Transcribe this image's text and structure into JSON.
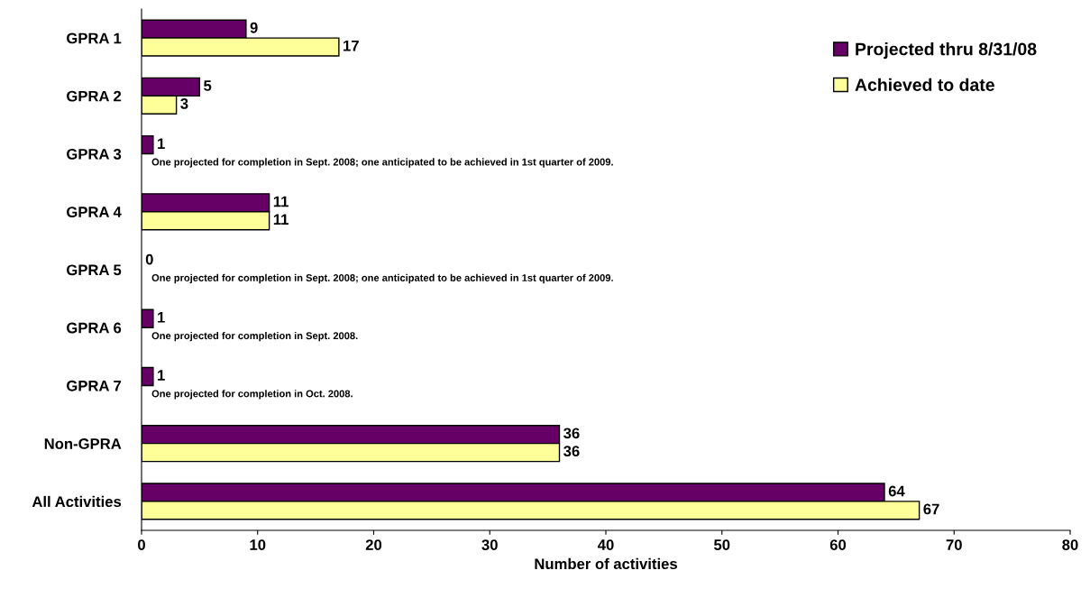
{
  "chart_data": {
    "type": "bar",
    "orientation": "horizontal",
    "xlabel": "Number of activities",
    "categories": [
      "GPRA 1",
      "GPRA 2",
      "GPRA 3",
      "GPRA 4",
      "GPRA 5",
      "GPRA 6",
      "GPRA 7",
      "Non-GPRA",
      "All Activities"
    ],
    "series": [
      {
        "name": "Projected thru 8/31/08",
        "color": "#660066",
        "values": [
          9,
          5,
          1,
          11,
          0,
          1,
          1,
          36,
          64
        ],
        "value_labels": [
          "9",
          "5",
          "1",
          "11",
          "0",
          "1",
          "1",
          "36",
          "64"
        ]
      },
      {
        "name": "Achieved to date",
        "color": "#ffff99",
        "values": [
          17,
          3,
          null,
          11,
          null,
          null,
          null,
          36,
          67
        ],
        "value_labels": [
          "17",
          "3",
          null,
          "11",
          null,
          null,
          null,
          "36",
          "67"
        ]
      }
    ],
    "xlim": [
      0,
      80
    ],
    "xticks": [
      0,
      10,
      20,
      30,
      40,
      50,
      60,
      70,
      80
    ],
    "legend": "top right",
    "grid": false,
    "annotations": [
      "One projected for completion in Sept. 2008; one anticipated to be achieved in 1st quarter of 2009.",
      "One projected for completion in Sept. 2008; one anticipated to be achieved in 1st quarter of 2009.",
      "One projected for completion in Sept. 2008.",
      "One projected for completion in Oct. 2008."
    ]
  }
}
